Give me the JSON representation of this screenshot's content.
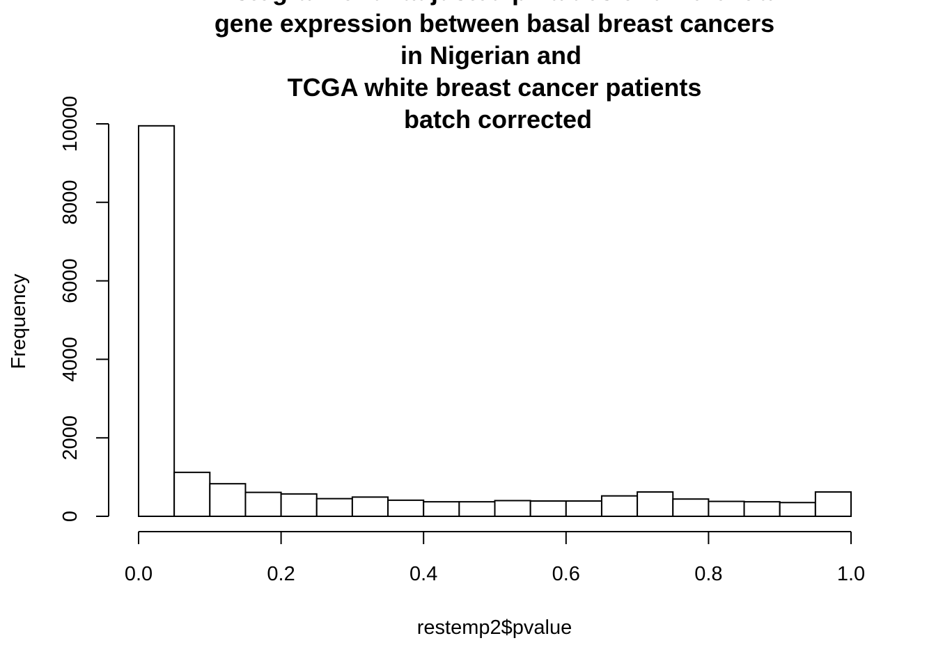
{
  "chart_data": {
    "type": "bar",
    "title_lines": [
      "Histogram of unadjusted p-values of differential",
      "gene expression between basal breast cancers",
      "in Nigerian and",
      "TCGA white breast cancer patients",
      "batch corrected"
    ],
    "xlabel": "restemp2$pvalue",
    "ylabel": "Frequency",
    "bin_edges": [
      0.0,
      0.05,
      0.1,
      0.15,
      0.2,
      0.25,
      0.3,
      0.35,
      0.4,
      0.45,
      0.5,
      0.55,
      0.6,
      0.65,
      0.7,
      0.75,
      0.8,
      0.85,
      0.9,
      0.95,
      1.0
    ],
    "values": [
      9950,
      1120,
      830,
      610,
      570,
      450,
      490,
      410,
      370,
      370,
      400,
      390,
      390,
      520,
      620,
      440,
      380,
      370,
      350,
      620
    ],
    "xlim": [
      0,
      1
    ],
    "ylim": [
      0,
      10000
    ],
    "x_ticks": [
      "0.0",
      "0.2",
      "0.4",
      "0.6",
      "0.8",
      "1.0"
    ],
    "y_ticks": [
      "0",
      "2000",
      "4000",
      "6000",
      "8000",
      "10000"
    ],
    "grid": false,
    "bar_fill": "#ffffff",
    "bar_stroke": "#000000"
  }
}
